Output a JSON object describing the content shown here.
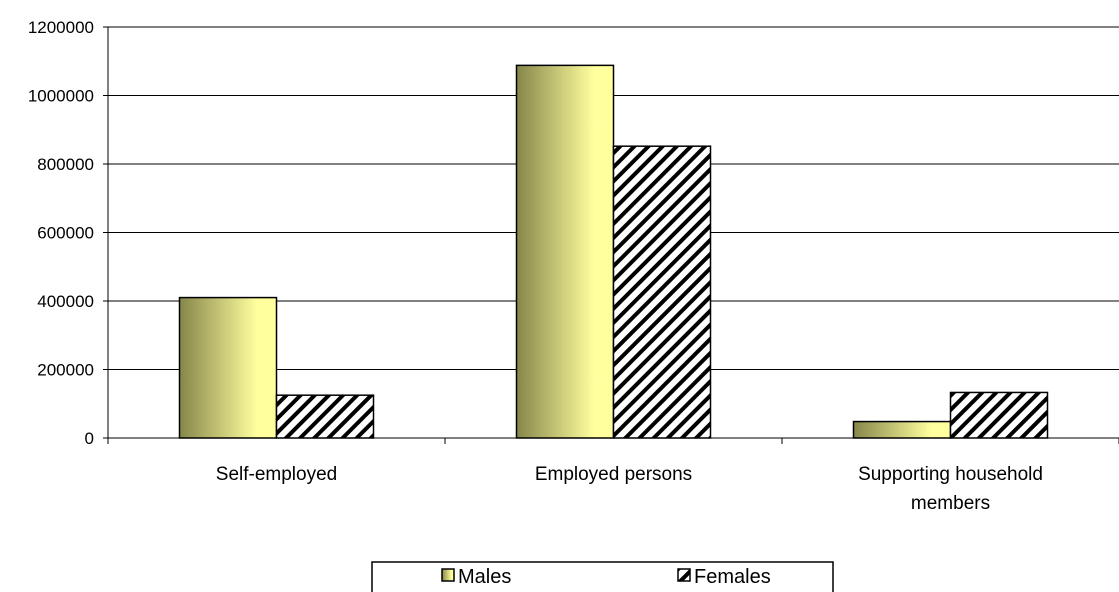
{
  "chart_data": {
    "type": "bar",
    "categories": [
      [
        "Self-employed"
      ],
      [
        "Employed persons"
      ],
      [
        "Supporting household",
        "members"
      ]
    ],
    "series": [
      {
        "name": "Males",
        "values": [
          410000,
          1088000,
          48000
        ],
        "fill": "olive-gradient",
        "colors": [
          "#86864a",
          "#ffff9e"
        ]
      },
      {
        "name": "Females",
        "values": [
          125000,
          852000,
          133000
        ],
        "fill": "diagonal-hatch",
        "colors": [
          "#ffffff",
          "#000000"
        ]
      }
    ],
    "ylim": [
      0,
      1200000
    ],
    "yticks": [
      "0",
      "200000",
      "400000",
      "600000",
      "800000",
      "1000000",
      "1200000"
    ],
    "grid": true,
    "legend_position": "bottom-center"
  }
}
